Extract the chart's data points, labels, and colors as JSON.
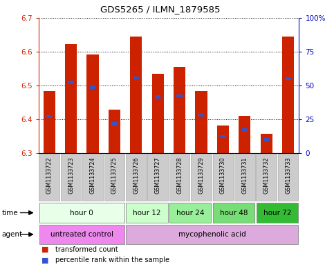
{
  "title": "GDS5265 / ILMN_1879585",
  "samples": [
    "GSM1133722",
    "GSM1133723",
    "GSM1133724",
    "GSM1133725",
    "GSM1133726",
    "GSM1133727",
    "GSM1133728",
    "GSM1133729",
    "GSM1133730",
    "GSM1133731",
    "GSM1133732",
    "GSM1133733"
  ],
  "bar_tops": [
    6.484,
    6.622,
    6.592,
    6.428,
    6.645,
    6.535,
    6.555,
    6.484,
    6.382,
    6.41,
    6.358,
    6.645
  ],
  "blue_positions": [
    6.408,
    6.508,
    6.495,
    6.387,
    6.522,
    6.466,
    6.469,
    6.413,
    6.349,
    6.368,
    6.34,
    6.52
  ],
  "bar_bottom": 6.3,
  "ylim_left": [
    6.3,
    6.7
  ],
  "ylim_right": [
    0,
    100
  ],
  "yticks_left": [
    6.3,
    6.4,
    6.5,
    6.6,
    6.7
  ],
  "yticks_right": [
    0,
    25,
    50,
    75,
    100
  ],
  "ytick_labels_right": [
    "0",
    "25",
    "50",
    "75",
    "100%"
  ],
  "bar_color": "#cc2200",
  "blue_color": "#3355cc",
  "bar_width": 0.55,
  "time_groups": [
    {
      "label": "hour 0",
      "start": 0,
      "end": 4,
      "color": "#e8ffe8"
    },
    {
      "label": "hour 12",
      "start": 4,
      "end": 6,
      "color": "#ccffcc"
    },
    {
      "label": "hour 24",
      "start": 6,
      "end": 8,
      "color": "#99ee99"
    },
    {
      "label": "hour 48",
      "start": 8,
      "end": 10,
      "color": "#77dd77"
    },
    {
      "label": "hour 72",
      "start": 10,
      "end": 12,
      "color": "#33bb33"
    }
  ],
  "agent_groups": [
    {
      "label": "untreated control",
      "start": 0,
      "end": 4,
      "color": "#ee88ee"
    },
    {
      "label": "mycophenolic acid",
      "start": 4,
      "end": 12,
      "color": "#ddaadd"
    }
  ],
  "bg_color": "#ffffff",
  "left_axis_color": "#cc2200",
  "right_axis_color": "#0000cc",
  "sample_bg_color": "#cccccc",
  "sample_edge_color": "#aaaaaa"
}
